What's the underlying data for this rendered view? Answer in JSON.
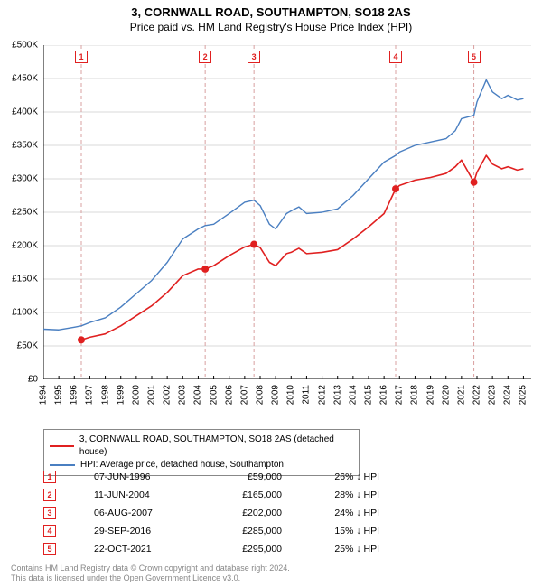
{
  "title_line1": "3, CORNWALL ROAD, SOUTHAMPTON, SO18 2AS",
  "title_line2": "Price paid vs. HM Land Registry's House Price Index (HPI)",
  "chart": {
    "type": "line",
    "background_color": "#ffffff",
    "axis_color": "#000000",
    "grid_color": "#d9d9d9",
    "vline_color": "#d9a0a0",
    "vline_dash": "4 3",
    "x_min": 1994,
    "x_max": 2025.5,
    "x_ticks": [
      1994,
      1995,
      1996,
      1997,
      1998,
      1999,
      2000,
      2001,
      2002,
      2003,
      2004,
      2005,
      2006,
      2007,
      2008,
      2009,
      2010,
      2011,
      2012,
      2013,
      2014,
      2015,
      2016,
      2017,
      2018,
      2019,
      2020,
      2021,
      2022,
      2023,
      2024,
      2025
    ],
    "y_min": 0,
    "y_max": 500000,
    "y_ticks": [
      0,
      50000,
      100000,
      150000,
      200000,
      250000,
      300000,
      350000,
      400000,
      450000,
      500000
    ],
    "y_prefix": "£",
    "y_suffix": "K",
    "y_divisor": 1000,
    "label_fontsize": 10,
    "series": [
      {
        "name": "HPI: Average price, detached house, Southampton",
        "color": "#4a7fc1",
        "width": 1.4,
        "points": [
          [
            1994.0,
            75000
          ],
          [
            1995.0,
            74000
          ],
          [
            1996.0,
            78000
          ],
          [
            1996.45,
            80000
          ],
          [
            1997.0,
            85000
          ],
          [
            1998.0,
            92000
          ],
          [
            1999.0,
            108000
          ],
          [
            2000.0,
            128000
          ],
          [
            2001.0,
            148000
          ],
          [
            2002.0,
            175000
          ],
          [
            2003.0,
            210000
          ],
          [
            2004.0,
            225000
          ],
          [
            2004.45,
            230000
          ],
          [
            2005.0,
            232000
          ],
          [
            2006.0,
            248000
          ],
          [
            2007.0,
            265000
          ],
          [
            2007.6,
            268000
          ],
          [
            2008.0,
            260000
          ],
          [
            2008.6,
            232000
          ],
          [
            2009.0,
            225000
          ],
          [
            2009.7,
            248000
          ],
          [
            2010.0,
            252000
          ],
          [
            2010.5,
            258000
          ],
          [
            2011.0,
            248000
          ],
          [
            2012.0,
            250000
          ],
          [
            2013.0,
            255000
          ],
          [
            2014.0,
            275000
          ],
          [
            2015.0,
            300000
          ],
          [
            2016.0,
            325000
          ],
          [
            2016.75,
            335000
          ],
          [
            2017.0,
            340000
          ],
          [
            2018.0,
            350000
          ],
          [
            2019.0,
            355000
          ],
          [
            2020.0,
            360000
          ],
          [
            2020.6,
            372000
          ],
          [
            2021.0,
            390000
          ],
          [
            2021.8,
            395000
          ],
          [
            2022.0,
            415000
          ],
          [
            2022.6,
            448000
          ],
          [
            2023.0,
            430000
          ],
          [
            2023.6,
            420000
          ],
          [
            2024.0,
            425000
          ],
          [
            2024.6,
            418000
          ],
          [
            2025.0,
            420000
          ]
        ]
      },
      {
        "name": "3, CORNWALL ROAD, SOUTHAMPTON, SO18 2AS (detached house)",
        "color": "#e02020",
        "width": 1.6,
        "points": [
          [
            1996.45,
            59000
          ],
          [
            1997.0,
            63000
          ],
          [
            1998.0,
            68000
          ],
          [
            1999.0,
            80000
          ],
          [
            2000.0,
            95000
          ],
          [
            2001.0,
            110000
          ],
          [
            2002.0,
            130000
          ],
          [
            2003.0,
            155000
          ],
          [
            2004.0,
            165000
          ],
          [
            2004.45,
            165000
          ],
          [
            2005.0,
            170000
          ],
          [
            2006.0,
            185000
          ],
          [
            2007.0,
            198000
          ],
          [
            2007.6,
            202000
          ],
          [
            2008.0,
            197000
          ],
          [
            2008.6,
            175000
          ],
          [
            2009.0,
            170000
          ],
          [
            2009.7,
            188000
          ],
          [
            2010.0,
            190000
          ],
          [
            2010.5,
            196000
          ],
          [
            2011.0,
            188000
          ],
          [
            2012.0,
            190000
          ],
          [
            2013.0,
            194000
          ],
          [
            2014.0,
            210000
          ],
          [
            2015.0,
            228000
          ],
          [
            2016.0,
            248000
          ],
          [
            2016.75,
            285000
          ],
          [
            2017.0,
            290000
          ],
          [
            2018.0,
            298000
          ],
          [
            2019.0,
            302000
          ],
          [
            2020.0,
            308000
          ],
          [
            2020.6,
            318000
          ],
          [
            2021.0,
            328000
          ],
          [
            2021.8,
            295000
          ],
          [
            2022.0,
            310000
          ],
          [
            2022.6,
            335000
          ],
          [
            2023.0,
            322000
          ],
          [
            2023.6,
            315000
          ],
          [
            2024.0,
            318000
          ],
          [
            2024.6,
            313000
          ],
          [
            2025.0,
            315000
          ]
        ]
      }
    ],
    "sale_markers": {
      "color": "#e02020",
      "fill": "#e02020",
      "radius": 4,
      "points": [
        {
          "n": 1,
          "x": 1996.45,
          "y": 59000
        },
        {
          "n": 2,
          "x": 2004.45,
          "y": 165000
        },
        {
          "n": 3,
          "x": 2007.6,
          "y": 202000
        },
        {
          "n": 4,
          "x": 2016.75,
          "y": 285000
        },
        {
          "n": 5,
          "x": 2021.8,
          "y": 295000
        }
      ]
    }
  },
  "legend": {
    "border_color": "#888888",
    "items": [
      {
        "color": "#e02020",
        "label": "3, CORNWALL ROAD, SOUTHAMPTON, SO18 2AS (detached house)"
      },
      {
        "color": "#4a7fc1",
        "label": "HPI: Average price, detached house, Southampton"
      }
    ]
  },
  "sales": {
    "box_border": "#e02020",
    "box_text": "#e02020",
    "arrow": "↓",
    "rows": [
      {
        "n": "1",
        "date": "07-JUN-1996",
        "price": "£59,000",
        "diff": "26% ↓ HPI"
      },
      {
        "n": "2",
        "date": "11-JUN-2004",
        "price": "£165,000",
        "diff": "28% ↓ HPI"
      },
      {
        "n": "3",
        "date": "06-AUG-2007",
        "price": "£202,000",
        "diff": "24% ↓ HPI"
      },
      {
        "n": "4",
        "date": "29-SEP-2016",
        "price": "£285,000",
        "diff": "15% ↓ HPI"
      },
      {
        "n": "5",
        "date": "22-OCT-2021",
        "price": "£295,000",
        "diff": "25% ↓ HPI"
      }
    ]
  },
  "footer": {
    "line1": "Contains HM Land Registry data © Crown copyright and database right 2024.",
    "line2": "This data is licensed under the Open Government Licence v3.0."
  }
}
